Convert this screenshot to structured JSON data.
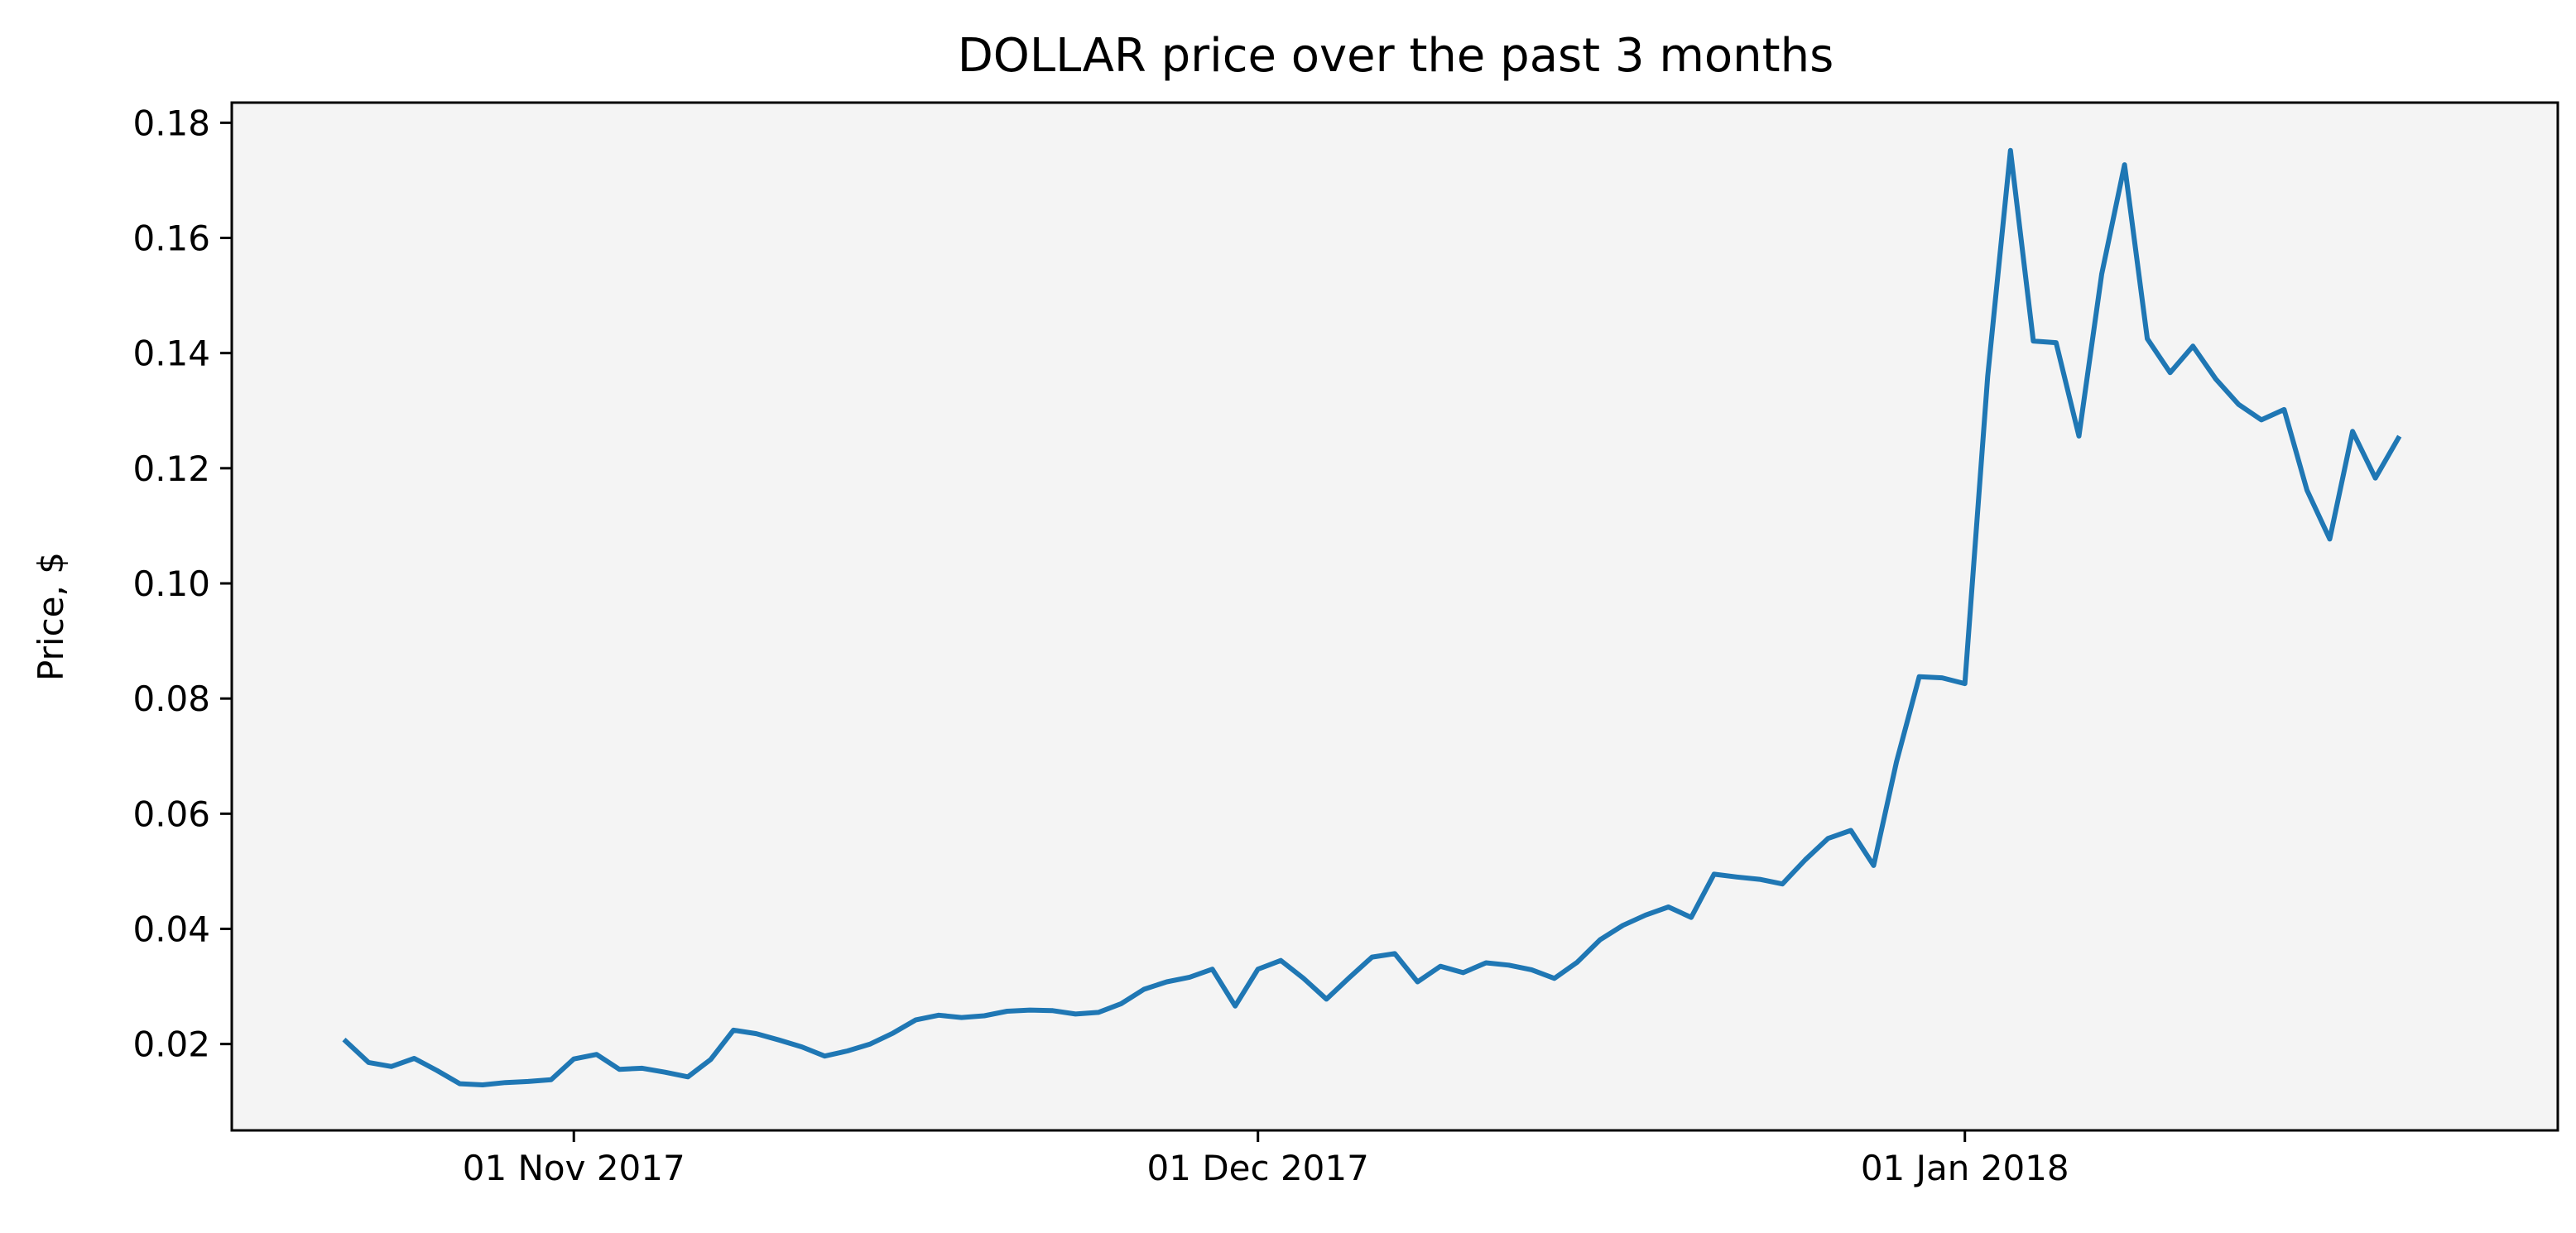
{
  "chart_data": {
    "type": "line",
    "title": "DOLLAR price over the past 3 months",
    "xlabel": "",
    "ylabel": "Price, $",
    "x_tick_labels": [
      {
        "date": "2017-11-01",
        "label": "01 Nov 2017"
      },
      {
        "date": "2017-12-01",
        "label": "01 Dec 2017"
      },
      {
        "date": "2018-01-01",
        "label": "01 Jan 2018"
      }
    ],
    "y_ticks": [
      0.02,
      0.04,
      0.06,
      0.08,
      0.1,
      0.12,
      0.14,
      0.16,
      0.18
    ],
    "y_tick_labels": [
      "0.02",
      "0.04",
      "0.06",
      "0.08",
      "0.10",
      "0.12",
      "0.14",
      "0.16",
      "0.18"
    ],
    "xlim": [
      "2017-10-17",
      "2018-01-27"
    ],
    "ylim": [
      0.005,
      0.1835
    ],
    "grid": false,
    "series": [
      {
        "name": "",
        "color": "#1f77b4",
        "points": [
          [
            "2017-10-22",
            0.0205
          ],
          [
            "2017-10-23",
            0.0168
          ],
          [
            "2017-10-24",
            0.0161
          ],
          [
            "2017-10-25",
            0.0175
          ],
          [
            "2017-10-26",
            0.0154
          ],
          [
            "2017-10-27",
            0.0131
          ],
          [
            "2017-10-28",
            0.0129
          ],
          [
            "2017-10-29",
            0.0133
          ],
          [
            "2017-10-30",
            0.0135
          ],
          [
            "2017-10-31",
            0.0138
          ],
          [
            "2017-11-01",
            0.0174
          ],
          [
            "2017-11-02",
            0.0182
          ],
          [
            "2017-11-03",
            0.0156
          ],
          [
            "2017-11-04",
            0.0158
          ],
          [
            "2017-11-05",
            0.0151
          ],
          [
            "2017-11-06",
            0.0143
          ],
          [
            "2017-11-07",
            0.0173
          ],
          [
            "2017-11-08",
            0.0224
          ],
          [
            "2017-11-09",
            0.0218
          ],
          [
            "2017-11-10",
            0.0207
          ],
          [
            "2017-11-11",
            0.0195
          ],
          [
            "2017-11-12",
            0.0179
          ],
          [
            "2017-11-13",
            0.0188
          ],
          [
            "2017-11-14",
            0.02
          ],
          [
            "2017-11-15",
            0.0219
          ],
          [
            "2017-11-16",
            0.0242
          ],
          [
            "2017-11-17",
            0.025
          ],
          [
            "2017-11-18",
            0.0246
          ],
          [
            "2017-11-19",
            0.0249
          ],
          [
            "2017-11-20",
            0.0257
          ],
          [
            "2017-11-21",
            0.0259
          ],
          [
            "2017-11-22",
            0.0258
          ],
          [
            "2017-11-23",
            0.0252
          ],
          [
            "2017-11-24",
            0.0255
          ],
          [
            "2017-11-25",
            0.027
          ],
          [
            "2017-11-26",
            0.0295
          ],
          [
            "2017-11-27",
            0.0308
          ],
          [
            "2017-11-28",
            0.0316
          ],
          [
            "2017-11-29",
            0.033
          ],
          [
            "2017-11-30",
            0.0266
          ],
          [
            "2017-12-01",
            0.033
          ],
          [
            "2017-12-02",
            0.0345
          ],
          [
            "2017-12-03",
            0.0314
          ],
          [
            "2017-12-04",
            0.0278
          ],
          [
            "2017-12-05",
            0.0315
          ],
          [
            "2017-12-06",
            0.0351
          ],
          [
            "2017-12-07",
            0.0357
          ],
          [
            "2017-12-08",
            0.0308
          ],
          [
            "2017-12-09",
            0.0335
          ],
          [
            "2017-12-10",
            0.0324
          ],
          [
            "2017-12-11",
            0.0341
          ],
          [
            "2017-12-12",
            0.0337
          ],
          [
            "2017-12-13",
            0.0329
          ],
          [
            "2017-12-14",
            0.0314
          ],
          [
            "2017-12-15",
            0.0342
          ],
          [
            "2017-12-16",
            0.0381
          ],
          [
            "2017-12-17",
            0.0406
          ],
          [
            "2017-12-18",
            0.0424
          ],
          [
            "2017-12-19",
            0.0438
          ],
          [
            "2017-12-20",
            0.042
          ],
          [
            "2017-12-21",
            0.0495
          ],
          [
            "2017-12-22",
            0.049
          ],
          [
            "2017-12-23",
            0.0486
          ],
          [
            "2017-12-24",
            0.0478
          ],
          [
            "2017-12-25",
            0.052
          ],
          [
            "2017-12-26",
            0.0557
          ],
          [
            "2017-12-27",
            0.0571
          ],
          [
            "2017-12-28",
            0.051
          ],
          [
            "2017-12-29",
            0.069
          ],
          [
            "2017-12-30",
            0.0838
          ],
          [
            "2017-12-31",
            0.0836
          ],
          [
            "2018-01-01",
            0.0826
          ],
          [
            "2018-01-02",
            0.136
          ],
          [
            "2018-01-03",
            0.1752
          ],
          [
            "2018-01-04",
            0.1421
          ],
          [
            "2018-01-05",
            0.1418
          ],
          [
            "2018-01-06",
            0.1256
          ],
          [
            "2018-01-07",
            0.1537
          ],
          [
            "2018-01-08",
            0.1727
          ],
          [
            "2018-01-09",
            0.1425
          ],
          [
            "2018-01-10",
            0.1366
          ],
          [
            "2018-01-11",
            0.1412
          ],
          [
            "2018-01-12",
            0.1355
          ],
          [
            "2018-01-13",
            0.1311
          ],
          [
            "2018-01-14",
            0.1284
          ],
          [
            "2018-01-15",
            0.1302
          ],
          [
            "2018-01-16",
            0.1162
          ],
          [
            "2018-01-17",
            0.1077
          ],
          [
            "2018-01-18",
            0.1264
          ],
          [
            "2018-01-19",
            0.1183
          ],
          [
            "2018-01-20",
            0.1252
          ]
        ]
      }
    ]
  }
}
